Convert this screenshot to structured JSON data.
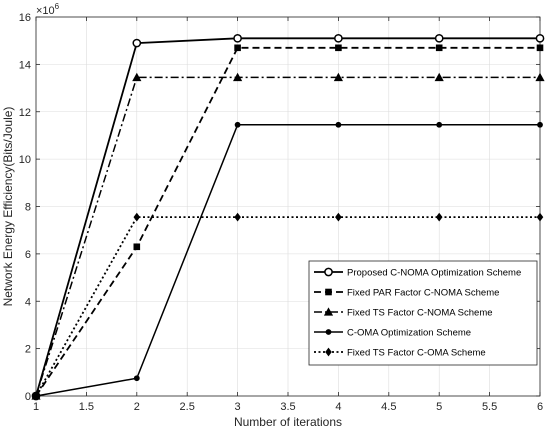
{
  "chart_data": {
    "type": "line",
    "xlabel": "Number of iterations",
    "ylabel": "Network Energy Efficiency(Bits/Joule)",
    "y_multiplier": "×10",
    "y_multiplier_exp": "6",
    "xlim": [
      1,
      6
    ],
    "ylim": [
      0,
      16
    ],
    "xticks": [
      1,
      1.5,
      2,
      2.5,
      3,
      3.5,
      4,
      4.5,
      5,
      5.5,
      6
    ],
    "xtick_labels": [
      "1",
      "1.5",
      "2",
      "2.5",
      "3",
      "3.5",
      "4",
      "4.5",
      "5",
      "5.5",
      "6"
    ],
    "yticks": [
      0,
      2,
      4,
      6,
      8,
      10,
      12,
      14,
      16
    ],
    "ytick_labels": [
      "0",
      "2",
      "4",
      "6",
      "8",
      "10",
      "12",
      "14",
      "16"
    ],
    "grid": true,
    "legend_position": "bottom-right",
    "x": [
      1,
      2,
      3,
      4,
      5,
      6
    ],
    "series": [
      {
        "name": "Proposed C-NOMA Optimization Scheme",
        "values": [
          0,
          14.9,
          15.1,
          15.1,
          15.1,
          15.1
        ],
        "dash": "solid",
        "marker": "open-circle",
        "width": 1.8
      },
      {
        "name": "Fixed PAR Factor C-NOMA Scheme",
        "values": [
          0,
          6.3,
          14.7,
          14.7,
          14.7,
          14.7
        ],
        "dash": "dashed",
        "marker": "filled-square",
        "width": 1.8
      },
      {
        "name": "Fixed TS Factor C-NOMA Scheme",
        "values": [
          0,
          13.45,
          13.45,
          13.45,
          13.45,
          13.45
        ],
        "dash": "dashdot",
        "marker": "filled-triangle",
        "width": 1.5
      },
      {
        "name": "C-OMA Optimization Scheme",
        "values": [
          0,
          0.75,
          11.45,
          11.45,
          11.45,
          11.45
        ],
        "dash": "solid",
        "marker": "filled-circle",
        "width": 1.5
      },
      {
        "name": "Fixed TS Factor C-OMA Scheme",
        "values": [
          0,
          7.55,
          7.55,
          7.55,
          7.55,
          7.55
        ],
        "dash": "dotted",
        "marker": "filled-diamond",
        "width": 1.8
      }
    ]
  }
}
